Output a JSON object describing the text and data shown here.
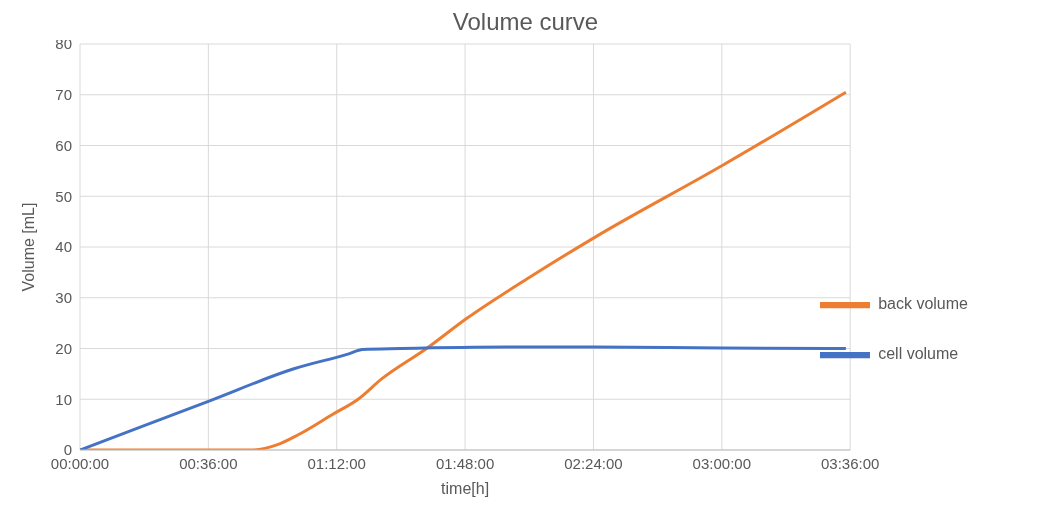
{
  "chart_data": {
    "type": "line",
    "title": "Volume curve",
    "xlabel": "time[h]",
    "ylabel": "Volume [mL]",
    "xlim": [
      0,
      3.6
    ],
    "xticks": [
      {
        "value": 0,
        "label": "00:00:00"
      },
      {
        "value": 0.6,
        "label": "00:36:00"
      },
      {
        "value": 1.2,
        "label": "01:12:00"
      },
      {
        "value": 1.8,
        "label": "01:48:00"
      },
      {
        "value": 2.4,
        "label": "02:24:00"
      },
      {
        "value": 3.0,
        "label": "03:00:00"
      },
      {
        "value": 3.6,
        "label": "03:36:00"
      }
    ],
    "ylim": [
      0,
      80
    ],
    "yticks": [
      0,
      10,
      20,
      30,
      40,
      50,
      60,
      70,
      80
    ],
    "grid": true,
    "legend": "right",
    "marker": "none",
    "line_style": "solid",
    "series": [
      {
        "name": "back volume",
        "color": "#ed7d31",
        "x": [
          0,
          0.4,
          0.8,
          0.92,
          1.02,
          1.18,
          1.3,
          1.41,
          1.62,
          1.81,
          2.1,
          2.41,
          3.0,
          3.58
        ],
        "values": [
          0,
          0,
          0,
          1,
          3,
          7,
          10,
          14,
          20,
          26,
          34,
          42,
          56,
          70.5
        ]
      },
      {
        "name": "cell volume",
        "color": "#4472c4",
        "x": [
          0,
          0.6,
          1.0,
          1.26,
          1.32,
          1.5,
          2.0,
          2.4,
          3.0,
          3.58
        ],
        "values": [
          0,
          9.6,
          16,
          19,
          19.8,
          20,
          20.3,
          20.3,
          20.1,
          20
        ]
      }
    ]
  }
}
